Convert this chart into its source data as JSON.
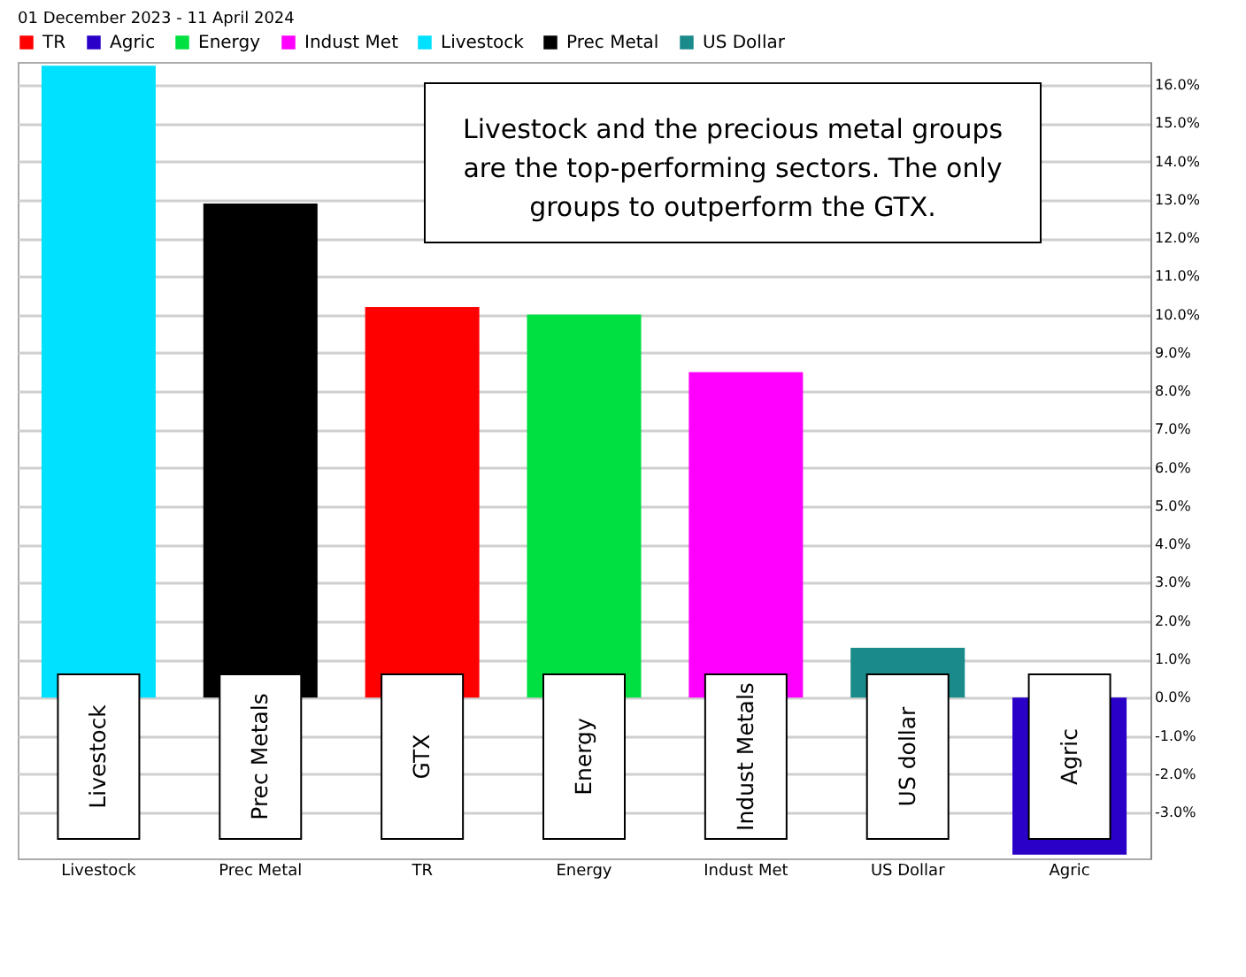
{
  "chart_data": {
    "type": "bar",
    "subtitle": "01 December 2023 - 11 April 2024",
    "categories": [
      "Livestock",
      "Prec Metal",
      "TR",
      "Energy",
      "Indust Met",
      "US Dollar",
      "Agric"
    ],
    "series": [
      {
        "name": "TR",
        "color": "#ff0000",
        "values": [
          null,
          null,
          10.2,
          null,
          null,
          null,
          null
        ]
      },
      {
        "name": "Agric",
        "color": "#2a00c8",
        "values": [
          null,
          null,
          null,
          null,
          null,
          null,
          -4.1
        ]
      },
      {
        "name": "Energy",
        "color": "#00e040",
        "values": [
          null,
          null,
          null,
          10.0,
          null,
          null,
          null
        ]
      },
      {
        "name": "Indust Met",
        "color": "#ff00ff",
        "values": [
          null,
          null,
          null,
          null,
          8.5,
          null,
          null
        ]
      },
      {
        "name": "Livestock",
        "color": "#00e0ff",
        "values": [
          16.5,
          null,
          null,
          null,
          null,
          null,
          null
        ]
      },
      {
        "name": "Prec Metal",
        "color": "#000000",
        "values": [
          null,
          12.9,
          null,
          null,
          null,
          null,
          null
        ]
      },
      {
        "name": "US Dollar",
        "color": "#1a8a8a",
        "values": [
          null,
          null,
          null,
          null,
          null,
          1.3,
          null
        ]
      }
    ],
    "ylim": [
      -4.2,
      16.6
    ],
    "yticks": [
      {
        "value": -3,
        "label": "-3.0%"
      },
      {
        "value": -2,
        "label": "-2.0%"
      },
      {
        "value": -1,
        "label": "-1.0%"
      },
      {
        "value": 0,
        "label": "0.0%"
      },
      {
        "value": 1,
        "label": "1.0%"
      },
      {
        "value": 2,
        "label": "2.0%"
      },
      {
        "value": 3,
        "label": "3.0%"
      },
      {
        "value": 4,
        "label": "4.0%"
      },
      {
        "value": 5,
        "label": "5.0%"
      },
      {
        "value": 6,
        "label": "6.0%"
      },
      {
        "value": 7,
        "label": "7.0%"
      },
      {
        "value": 8,
        "label": "8.0%"
      },
      {
        "value": 9,
        "label": "9.0%"
      },
      {
        "value": 10,
        "label": "10.0%"
      },
      {
        "value": 11,
        "label": "11.0%"
      },
      {
        "value": 12,
        "label": "12.0%"
      },
      {
        "value": 13,
        "label": "13.0%"
      },
      {
        "value": 14,
        "label": "14.0%"
      },
      {
        "value": 15,
        "label": "15.0%"
      },
      {
        "value": 16,
        "label": "16.0%"
      }
    ],
    "grid": "y",
    "legend": "top",
    "annotations": [
      "Livestock and the precious metal groups are the top-performing sectors.  The only groups to outperform the GTX.",
      "Livestock",
      "Prec Metals",
      "GTX",
      "Energy",
      "Indust Metals",
      "US dollar",
      "Agric"
    ]
  }
}
